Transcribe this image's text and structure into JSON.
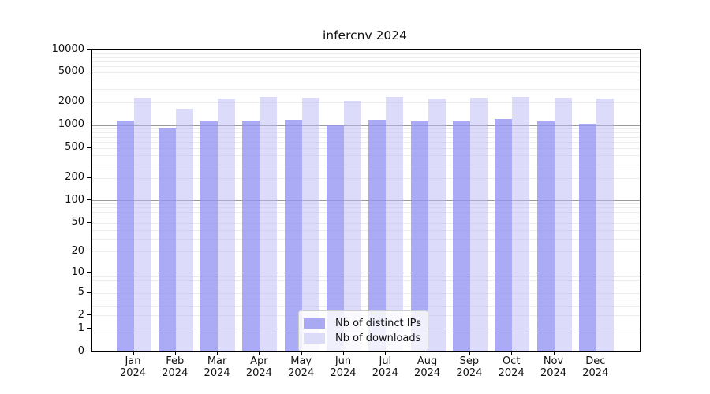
{
  "title": "infercnv 2024",
  "colors": {
    "ips_bar": "rgba(149,149,242,0.8)",
    "downloads_bar": "rgba(185,185,245,0.5)",
    "ips_swatch": "#a9a9f3",
    "downloads_swatch": "#dcdcf8",
    "grid_minor": "#ececec",
    "grid_major": "#9b9b9b"
  },
  "chart_data": {
    "type": "bar",
    "title": "infercnv 2024",
    "categories": [
      "Jan 2024",
      "Feb 2024",
      "Mar 2024",
      "Apr 2024",
      "May 2024",
      "Jun 2024",
      "Jul 2024",
      "Aug 2024",
      "Sep 2024",
      "Oct 2024",
      "Nov 2024",
      "Dec 2024"
    ],
    "series": [
      {
        "name": "Nb of distinct IPs",
        "values": [
          1160,
          895,
          1120,
          1140,
          1170,
          1000,
          1180,
          1130,
          1130,
          1220,
          1120,
          1050
        ]
      },
      {
        "name": "Nb of downloads",
        "values": [
          2310,
          1660,
          2280,
          2340,
          2310,
          2100,
          2340,
          2280,
          2290,
          2390,
          2310,
          2230
        ]
      }
    ],
    "xlabel": "",
    "ylabel": "",
    "ylim": [
      0,
      10000
    ],
    "y_scale": "log10(value+1)",
    "y_ticks": [
      10000,
      5000,
      2000,
      1000,
      500,
      200,
      100,
      50,
      20,
      10,
      5,
      2,
      1,
      0
    ],
    "grid": "horizontal",
    "legend_position": "lower-center"
  }
}
